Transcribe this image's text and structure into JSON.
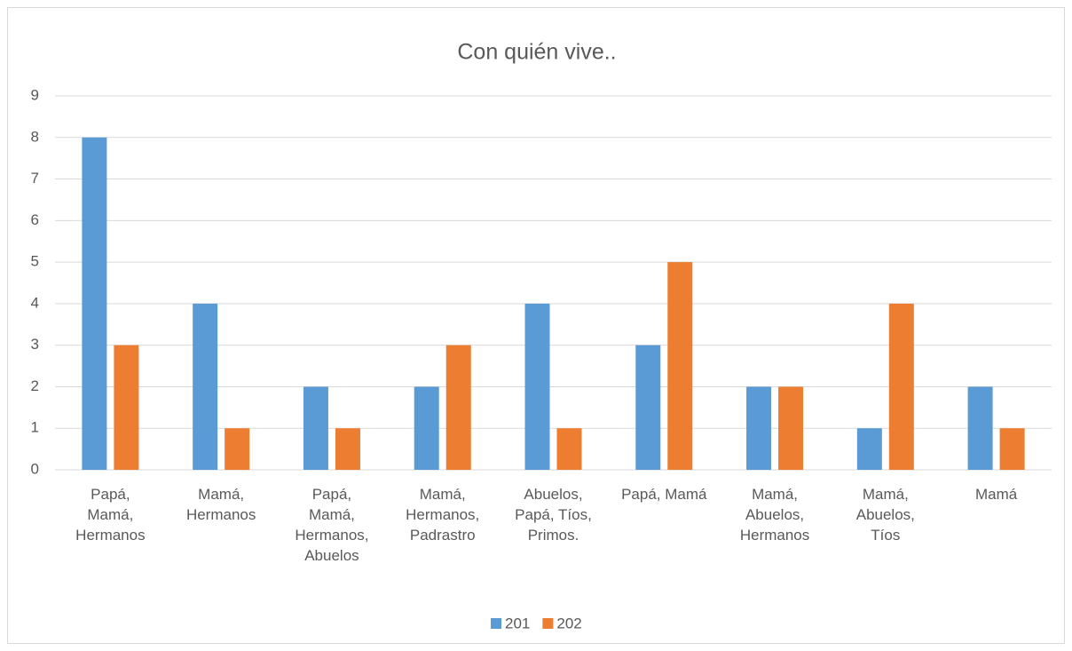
{
  "chart_data": {
    "type": "bar",
    "title": "Con quién vive..",
    "categories": [
      "Papá,\nMamá,\nHermanos",
      "Mamá,\nHermanos",
      "Papá,\nMamá,\nHermanos,\nAbuelos",
      "Mamá,\nHermanos,\nPadrastro",
      "Abuelos,\nPapá, Tíos,\nPrimos.",
      "Papá, Mamá",
      "Mamá,\nAbuelos,\nHermanos",
      "Mamá,\nAbuelos,\nTíos",
      "Mamá"
    ],
    "series": [
      {
        "name": "201",
        "color": "#5b9bd5",
        "values": [
          8,
          4,
          2,
          2,
          4,
          3,
          2,
          1,
          2
        ]
      },
      {
        "name": "202",
        "color": "#ed7d31",
        "values": [
          3,
          1,
          1,
          3,
          1,
          5,
          2,
          4,
          1
        ]
      }
    ],
    "ylim": [
      0,
      9
    ],
    "yticks": [
      0,
      1,
      2,
      3,
      4,
      5,
      6,
      7,
      8,
      9
    ],
    "grid": true,
    "legend": "bottom"
  }
}
